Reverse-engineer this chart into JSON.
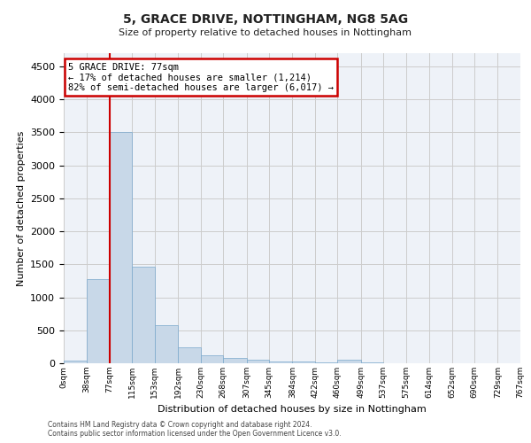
{
  "title1": "5, GRACE DRIVE, NOTTINGHAM, NG8 5AG",
  "title2": "Size of property relative to detached houses in Nottingham",
  "xlabel": "Distribution of detached houses by size in Nottingham",
  "ylabel": "Number of detached properties",
  "footer1": "Contains HM Land Registry data © Crown copyright and database right 2024.",
  "footer2": "Contains public sector information licensed under the Open Government Licence v3.0.",
  "annotation_line1": "5 GRACE DRIVE: 77sqm",
  "annotation_line2": "← 17% of detached houses are smaller (1,214)",
  "annotation_line3": "82% of semi-detached houses are larger (6,017) →",
  "bar_color": "#c8d8e8",
  "bar_edge_color": "#7aa8cc",
  "red_line_x": 77,
  "bin_edges": [
    0,
    38,
    77,
    115,
    153,
    192,
    230,
    268,
    307,
    345,
    384,
    422,
    460,
    499,
    537,
    575,
    614,
    652,
    690,
    729,
    767
  ],
  "bin_labels": [
    "0sqm",
    "38sqm",
    "77sqm",
    "115sqm",
    "153sqm",
    "192sqm",
    "230sqm",
    "268sqm",
    "307sqm",
    "345sqm",
    "384sqm",
    "422sqm",
    "460sqm",
    "499sqm",
    "537sqm",
    "575sqm",
    "614sqm",
    "652sqm",
    "690sqm",
    "729sqm",
    "767sqm"
  ],
  "bar_heights": [
    40,
    1270,
    3500,
    1470,
    575,
    240,
    120,
    85,
    55,
    30,
    25,
    20,
    55,
    10,
    5,
    5,
    5,
    3,
    2,
    2
  ],
  "ylim": [
    0,
    4700
  ],
  "yticks": [
    0,
    500,
    1000,
    1500,
    2000,
    2500,
    3000,
    3500,
    4000,
    4500
  ],
  "background_color": "#ffffff",
  "plot_bg_color": "#eef2f8",
  "grid_color": "#cccccc",
  "annotation_box_color": "#cc0000"
}
